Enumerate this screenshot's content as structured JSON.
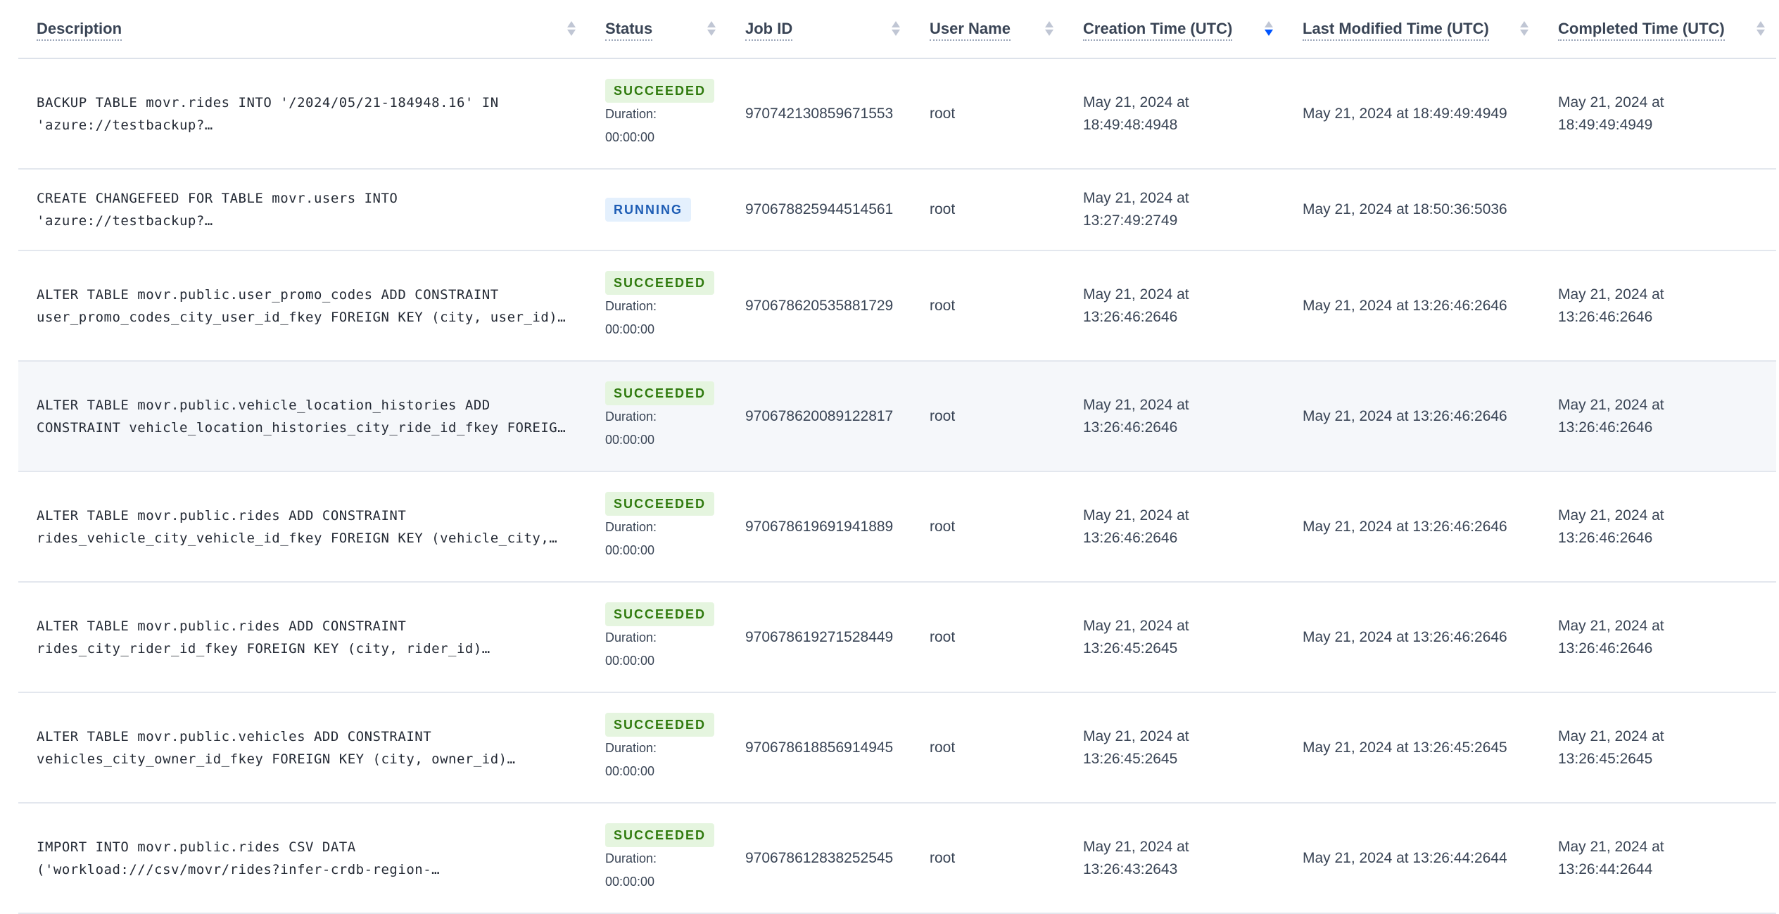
{
  "columns": [
    {
      "label": "Description",
      "sort": "none"
    },
    {
      "label": "Status",
      "sort": "none"
    },
    {
      "label": "Job ID",
      "sort": "none"
    },
    {
      "label": "User Name",
      "sort": "none"
    },
    {
      "label": "Creation Time (UTC)",
      "sort": "descending"
    },
    {
      "label": "Last Modified Time (UTC)",
      "sort": "none"
    },
    {
      "label": "Completed Time (UTC)",
      "sort": "none"
    }
  ],
  "colors": {
    "succeeded_bg": "#e5f5df",
    "succeeded_text": "#2f7a0d",
    "running_bg": "#e4f0fd",
    "running_text": "#1e5db5",
    "sort_active": "#0055ff"
  },
  "duration_label": "Duration:",
  "rows": [
    {
      "desc1": "BACKUP TABLE movr.rides INTO '/2024/05/21-184948.16' IN",
      "desc2": "'azure://testbackup?…",
      "status": "SUCCEEDED",
      "duration": "00:00:00",
      "job_id": "970742130859671553",
      "user": "root",
      "created1": "May 21, 2024 at",
      "created2": "18:49:48:4948",
      "modified": "May 21, 2024 at 18:49:49:4949",
      "completed1": "May 21, 2024 at",
      "completed2": "18:49:49:4949"
    },
    {
      "desc1": "CREATE CHANGEFEED FOR TABLE movr.users INTO",
      "desc2": "'azure://testbackup?…",
      "status": "RUNNING",
      "duration": "",
      "job_id": "970678825944514561",
      "user": "root",
      "created1": "May 21, 2024 at",
      "created2": "13:27:49:2749",
      "modified": "May 21, 2024 at 18:50:36:5036",
      "completed1": "",
      "completed2": ""
    },
    {
      "desc1": "ALTER TABLE movr.public.user_promo_codes ADD CONSTRAINT",
      "desc2": "user_promo_codes_city_user_id_fkey FOREIGN KEY (city, user_id)…",
      "status": "SUCCEEDED",
      "duration": "00:00:00",
      "job_id": "970678620535881729",
      "user": "root",
      "created1": "May 21, 2024 at",
      "created2": "13:26:46:2646",
      "modified": "May 21, 2024 at 13:26:46:2646",
      "completed1": "May 21, 2024 at",
      "completed2": "13:26:46:2646"
    },
    {
      "desc1": "ALTER TABLE movr.public.vehicle_location_histories ADD",
      "desc2": "CONSTRAINT vehicle_location_histories_city_ride_id_fkey FOREIG…",
      "status": "SUCCEEDED",
      "duration": "00:00:00",
      "job_id": "970678620089122817",
      "user": "root",
      "created1": "May 21, 2024 at",
      "created2": "13:26:46:2646",
      "modified": "May 21, 2024 at 13:26:46:2646",
      "completed1": "May 21, 2024 at",
      "completed2": "13:26:46:2646"
    },
    {
      "desc1": "ALTER TABLE movr.public.rides ADD CONSTRAINT",
      "desc2": "rides_vehicle_city_vehicle_id_fkey FOREIGN KEY (vehicle_city,…",
      "status": "SUCCEEDED",
      "duration": "00:00:00",
      "job_id": "970678619691941889",
      "user": "root",
      "created1": "May 21, 2024 at",
      "created2": "13:26:46:2646",
      "modified": "May 21, 2024 at 13:26:46:2646",
      "completed1": "May 21, 2024 at",
      "completed2": "13:26:46:2646"
    },
    {
      "desc1": "ALTER TABLE movr.public.rides ADD CONSTRAINT",
      "desc2": "rides_city_rider_id_fkey FOREIGN KEY (city, rider_id)…",
      "status": "SUCCEEDED",
      "duration": "00:00:00",
      "job_id": "970678619271528449",
      "user": "root",
      "created1": "May 21, 2024 at",
      "created2": "13:26:45:2645",
      "modified": "May 21, 2024 at 13:26:46:2646",
      "completed1": "May 21, 2024 at",
      "completed2": "13:26:46:2646"
    },
    {
      "desc1": "ALTER TABLE movr.public.vehicles ADD CONSTRAINT",
      "desc2": "vehicles_city_owner_id_fkey FOREIGN KEY (city, owner_id)…",
      "status": "SUCCEEDED",
      "duration": "00:00:00",
      "job_id": "970678618856914945",
      "user": "root",
      "created1": "May 21, 2024 at",
      "created2": "13:26:45:2645",
      "modified": "May 21, 2024 at 13:26:45:2645",
      "completed1": "May 21, 2024 at",
      "completed2": "13:26:45:2645"
    },
    {
      "desc1": "IMPORT INTO movr.public.rides CSV DATA",
      "desc2": "('workload:///csv/movr/rides?infer-crdb-region-…",
      "status": "SUCCEEDED",
      "duration": "00:00:00",
      "job_id": "970678612838252545",
      "user": "root",
      "created1": "May 21, 2024 at",
      "created2": "13:26:43:2643",
      "modified": "May 21, 2024 at 13:26:44:2644",
      "completed1": "May 21, 2024 at",
      "completed2": "13:26:44:2644"
    }
  ]
}
